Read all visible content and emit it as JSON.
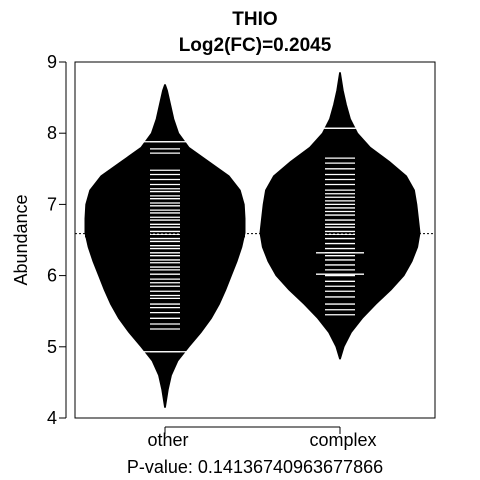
{
  "chart_data": {
    "type": "beanplot",
    "title": "THIO",
    "subtitle": "Log2(FC)=0.2045",
    "ylabel": "Abundance",
    "xlabel": "",
    "footer": "P-value: 0.14136740963677866",
    "ylim": [
      4,
      9
    ],
    "yticks": [
      4,
      5,
      6,
      7,
      8,
      9
    ],
    "categories": [
      "other",
      "complex"
    ],
    "overall_mean": 6.59,
    "groups": [
      {
        "name": "other",
        "mean": 6.55,
        "min": 4.15,
        "max": 8.68,
        "density": [
          [
            4.15,
            0.005
          ],
          [
            4.4,
            0.04
          ],
          [
            4.6,
            0.08
          ],
          [
            4.8,
            0.16
          ],
          [
            5.0,
            0.3
          ],
          [
            5.2,
            0.45
          ],
          [
            5.4,
            0.58
          ],
          [
            5.6,
            0.68
          ],
          [
            5.8,
            0.76
          ],
          [
            6.0,
            0.83
          ],
          [
            6.2,
            0.9
          ],
          [
            6.4,
            0.96
          ],
          [
            6.6,
            1.0
          ],
          [
            6.8,
            1.0
          ],
          [
            7.0,
            0.99
          ],
          [
            7.2,
            0.94
          ],
          [
            7.4,
            0.8
          ],
          [
            7.6,
            0.55
          ],
          [
            7.8,
            0.3
          ],
          [
            8.0,
            0.17
          ],
          [
            8.2,
            0.11
          ],
          [
            8.4,
            0.07
          ],
          [
            8.6,
            0.03
          ],
          [
            8.68,
            0.005
          ]
        ],
        "observations": [
          4.93,
          5.25,
          5.32,
          5.4,
          5.48,
          5.55,
          5.6,
          5.68,
          5.72,
          5.78,
          5.85,
          5.9,
          5.95,
          6.02,
          6.08,
          6.12,
          6.18,
          6.22,
          6.28,
          6.32,
          6.38,
          6.42,
          6.48,
          6.52,
          6.58,
          6.62,
          6.68,
          6.72,
          6.78,
          6.82,
          6.88,
          6.92,
          6.98,
          7.02,
          7.08,
          7.12,
          7.18,
          7.22,
          7.28,
          7.35,
          7.42,
          7.48,
          7.72,
          7.78,
          7.88
        ],
        "long_observations": [
          4.93,
          7.88
        ]
      },
      {
        "name": "complex",
        "mean": 6.65,
        "min": 4.83,
        "max": 8.85,
        "density": [
          [
            4.83,
            0.005
          ],
          [
            5.0,
            0.05
          ],
          [
            5.2,
            0.14
          ],
          [
            5.4,
            0.28
          ],
          [
            5.6,
            0.45
          ],
          [
            5.8,
            0.64
          ],
          [
            6.0,
            0.8
          ],
          [
            6.2,
            0.9
          ],
          [
            6.4,
            0.97
          ],
          [
            6.6,
            1.0
          ],
          [
            6.8,
            0.98
          ],
          [
            7.0,
            0.96
          ],
          [
            7.2,
            0.93
          ],
          [
            7.4,
            0.83
          ],
          [
            7.6,
            0.62
          ],
          [
            7.8,
            0.38
          ],
          [
            8.0,
            0.22
          ],
          [
            8.2,
            0.13
          ],
          [
            8.4,
            0.08
          ],
          [
            8.6,
            0.04
          ],
          [
            8.85,
            0.005
          ]
        ],
        "observations": [
          5.45,
          5.52,
          5.6,
          5.7,
          5.78,
          5.85,
          5.92,
          6.0,
          6.02,
          6.08,
          6.15,
          6.22,
          6.28,
          6.32,
          6.38,
          6.45,
          6.52,
          6.58,
          6.62,
          6.68,
          6.72,
          6.78,
          6.85,
          6.9,
          6.95,
          7.0,
          7.05,
          7.1,
          7.15,
          7.2,
          7.28,
          7.35,
          7.42,
          7.5,
          7.58,
          7.65,
          8.07
        ],
        "long_observations": [
          6.02,
          6.32,
          8.07
        ]
      }
    ]
  }
}
